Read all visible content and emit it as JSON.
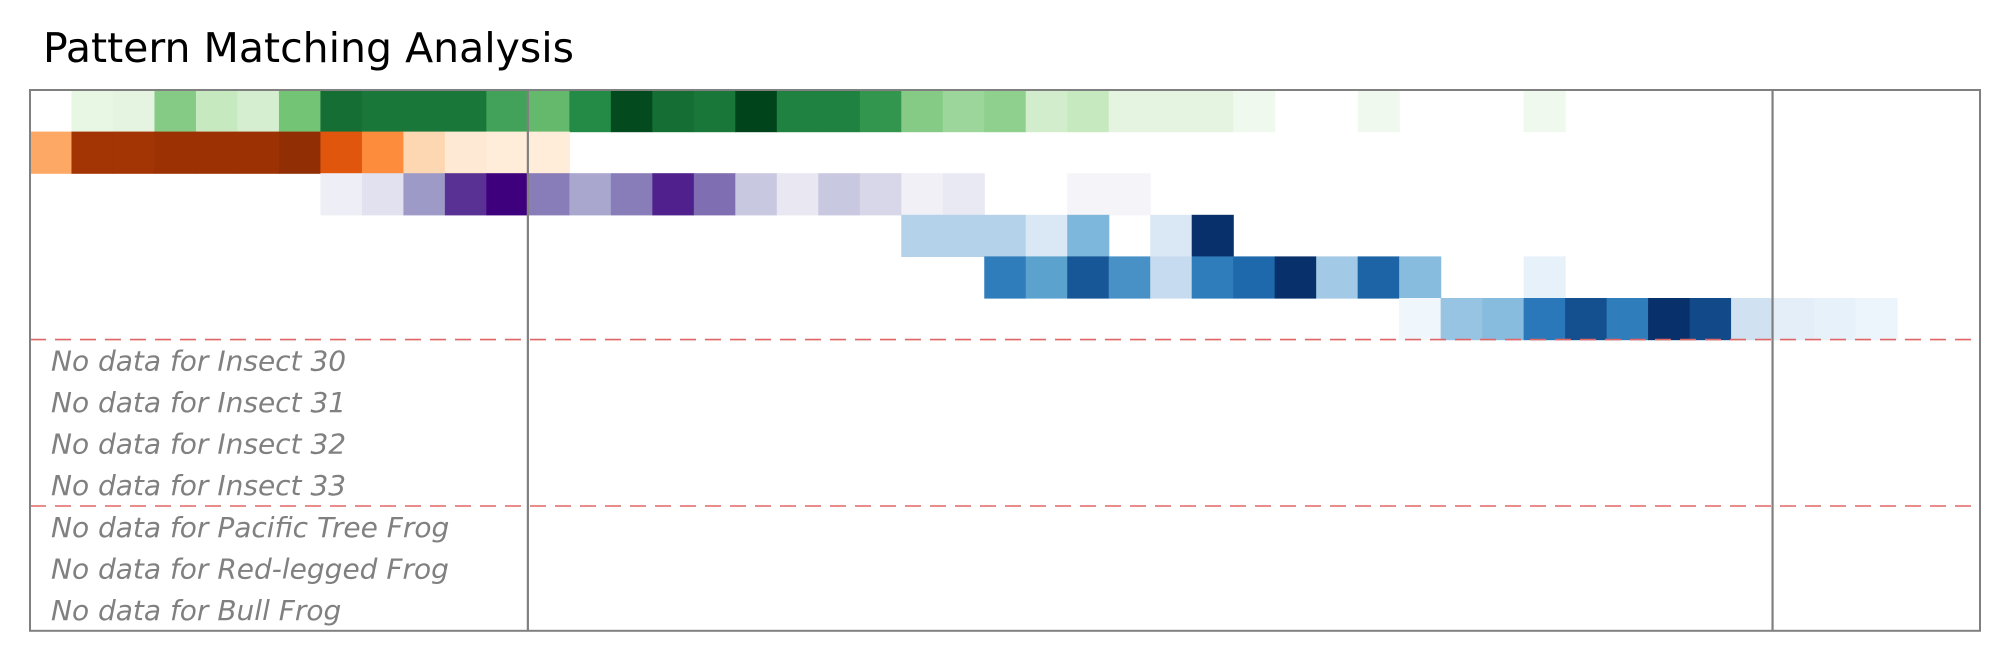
{
  "chart_data": {
    "type": "heatmap",
    "title": "Pattern Matching Analysis",
    "xlabel": "",
    "ylabel": "",
    "grid": false,
    "legend": "none",
    "columns": 47,
    "value_range": [
      0,
      1
    ],
    "vertical_markers_at_column": [
      12,
      42
    ],
    "group_separators_after_row": [
      6,
      10
    ],
    "rows": [
      {
        "colormap": "Greens",
        "values": [
          0,
          0.08,
          0.1,
          0.45,
          0.25,
          0.18,
          0.5,
          0.85,
          0.82,
          0.82,
          0.82,
          0.65,
          0.55,
          0.75,
          0.98,
          0.85,
          0.82,
          1.0,
          0.78,
          0.78,
          0.7,
          0.45,
          0.38,
          0.42,
          0.2,
          0.25,
          0.1,
          0.1,
          0.1,
          0.04,
          0,
          0,
          0.04,
          0,
          0,
          0,
          0.04,
          0,
          0,
          0,
          0,
          0,
          0,
          0,
          0,
          0,
          0
        ]
      },
      {
        "colormap": "Oranges",
        "values": [
          0.4,
          0.9,
          0.9,
          0.92,
          0.92,
          0.92,
          0.95,
          0.7,
          0.5,
          0.2,
          0.08,
          0.06,
          0.06,
          0,
          0,
          0,
          0,
          0,
          0,
          0,
          0,
          0,
          0,
          0,
          0,
          0,
          0,
          0,
          0,
          0,
          0,
          0,
          0,
          0,
          0,
          0,
          0,
          0,
          0,
          0,
          0,
          0,
          0,
          0,
          0,
          0,
          0
        ]
      },
      {
        "colormap": "Purples",
        "values": [
          0,
          0,
          0,
          0,
          0,
          0,
          0,
          0.1,
          0.2,
          0.5,
          0.85,
          1.0,
          0.6,
          0.45,
          0.6,
          0.9,
          0.65,
          0.32,
          0.15,
          0.32,
          0.26,
          0.08,
          0.14,
          0,
          0,
          0.05,
          0.05,
          0,
          0,
          0,
          0,
          0,
          0,
          0,
          0,
          0,
          0,
          0,
          0,
          0,
          0,
          0,
          0,
          0,
          0,
          0,
          0
        ]
      },
      {
        "colormap": "Blues",
        "values": [
          0,
          0,
          0,
          0,
          0,
          0,
          0,
          0,
          0,
          0,
          0,
          0,
          0,
          0,
          0,
          0,
          0,
          0,
          0,
          0,
          0,
          0.3,
          0.3,
          0.3,
          0.15,
          0.45,
          0,
          0.15,
          1.0,
          0,
          0,
          0,
          0,
          0,
          0,
          0,
          0,
          0,
          0,
          0,
          0,
          0,
          0,
          0,
          0,
          0,
          0
        ]
      },
      {
        "colormap": "Blues",
        "values": [
          0,
          0,
          0,
          0,
          0,
          0,
          0,
          0,
          0,
          0,
          0,
          0,
          0,
          0,
          0,
          0,
          0,
          0,
          0,
          0,
          0,
          0,
          0,
          0.7,
          0.55,
          0.85,
          0.62,
          0.25,
          0.7,
          0.78,
          1.0,
          0.35,
          0.8,
          0.42,
          0,
          0,
          0.08,
          0,
          0,
          0,
          0,
          0,
          0,
          0,
          0,
          0,
          0
        ]
      },
      {
        "colormap": "Blues",
        "values": [
          0,
          0,
          0,
          0,
          0,
          0,
          0,
          0,
          0,
          0,
          0,
          0,
          0,
          0,
          0,
          0,
          0,
          0,
          0,
          0,
          0,
          0,
          0,
          0,
          0,
          0,
          0,
          0,
          0,
          0,
          0,
          0,
          0,
          0.04,
          0.38,
          0.42,
          0.72,
          0.88,
          0.7,
          1.0,
          0.9,
          0.2,
          0.1,
          0.08,
          0.05,
          0,
          0
        ]
      }
    ],
    "no_data_rows": [
      "No data for Insect 30",
      "No data for Insect 31",
      "No data for Insect 32",
      "No data for Insect 33",
      "No data for Pacific Tree Frog",
      "No data for Red-legged Frog",
      "No data for Bull Frog"
    ]
  },
  "colors": {
    "frame": "#808080",
    "separator": "#e06666",
    "background": "#ffffff",
    "text_muted": "#808080"
  }
}
